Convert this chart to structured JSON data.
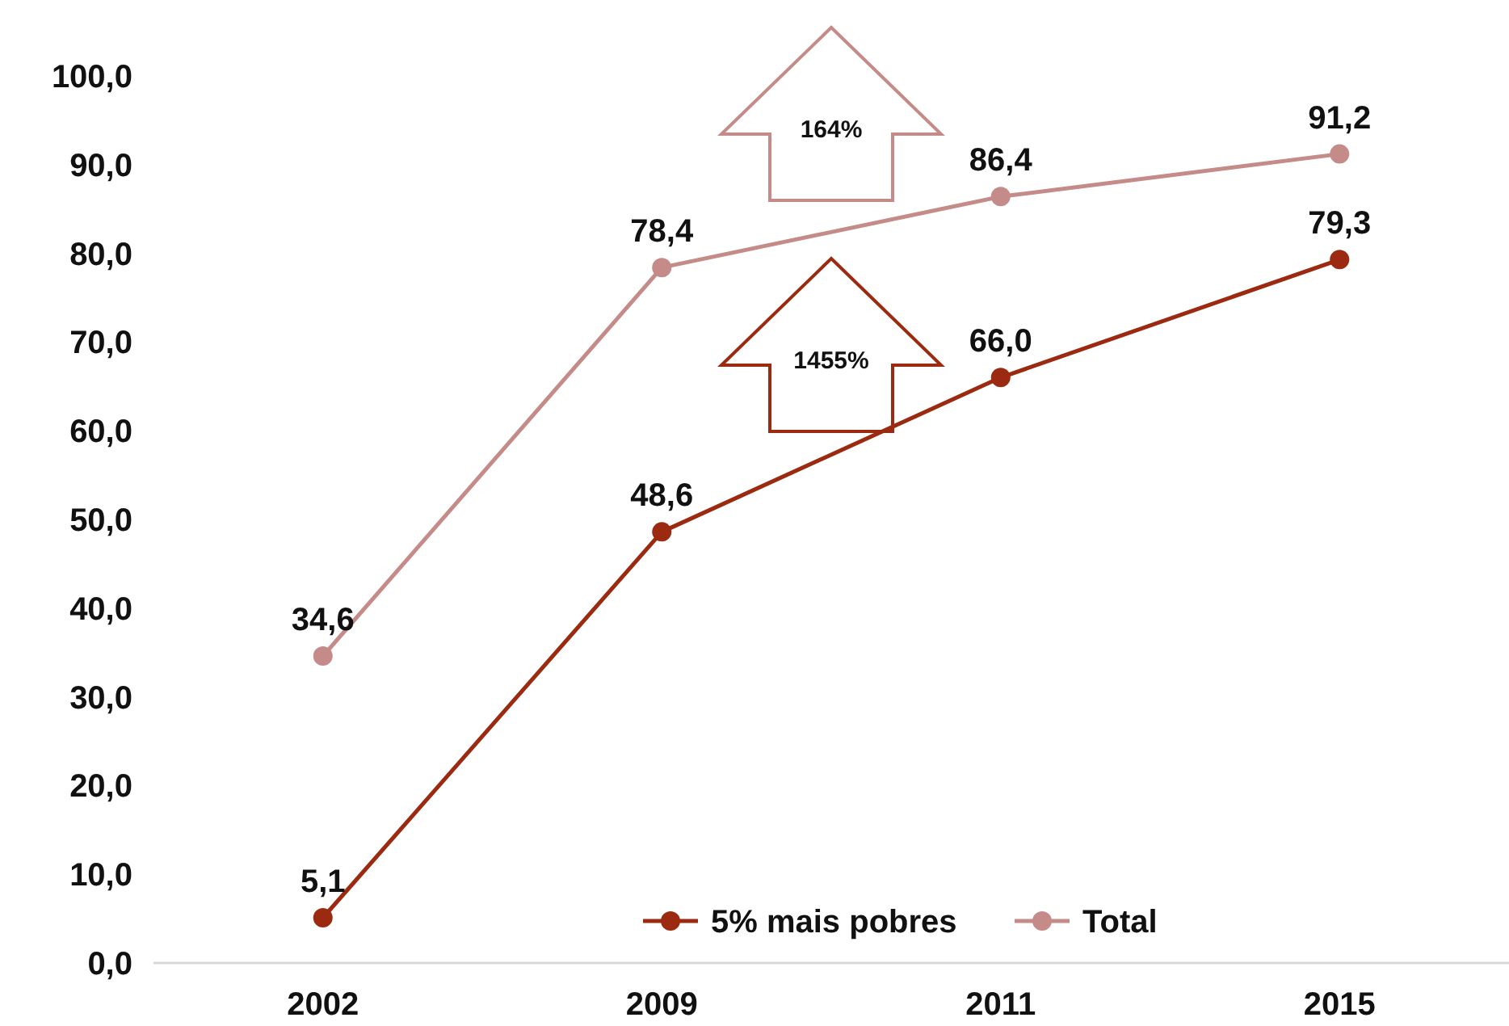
{
  "chart_data": {
    "type": "line",
    "categories": [
      "2002",
      "2009",
      "2011",
      "2015"
    ],
    "series": [
      {
        "name": "5% mais pobres",
        "color": "#9b2a10",
        "values": [
          5.1,
          48.6,
          66.0,
          79.3
        ],
        "value_labels": [
          "5,1",
          "48,6",
          "66,0",
          "79,3"
        ]
      },
      {
        "name": "Total",
        "color": "#c48b88",
        "values": [
          34.6,
          78.4,
          86.4,
          91.2
        ],
        "value_labels": [
          "34,6",
          "78,4",
          "86,4",
          "91,2"
        ]
      }
    ],
    "ylim": [
      0,
      100
    ],
    "yticks": [
      {
        "value": 0,
        "label": "0,0"
      },
      {
        "value": 10,
        "label": "10,0"
      },
      {
        "value": 20,
        "label": "20,0"
      },
      {
        "value": 30,
        "label": "30,0"
      },
      {
        "value": 40,
        "label": "40,0"
      },
      {
        "value": 50,
        "label": "50,0"
      },
      {
        "value": 60,
        "label": "60,0"
      },
      {
        "value": 70,
        "label": "70,0"
      },
      {
        "value": 80,
        "label": "80,0"
      },
      {
        "value": 90,
        "label": "90,0"
      },
      {
        "value": 100,
        "label": "100,0"
      }
    ],
    "annotations": [
      "164%",
      "1455%"
    ],
    "legend": "bottom",
    "marker": "circle",
    "grid": false
  }
}
